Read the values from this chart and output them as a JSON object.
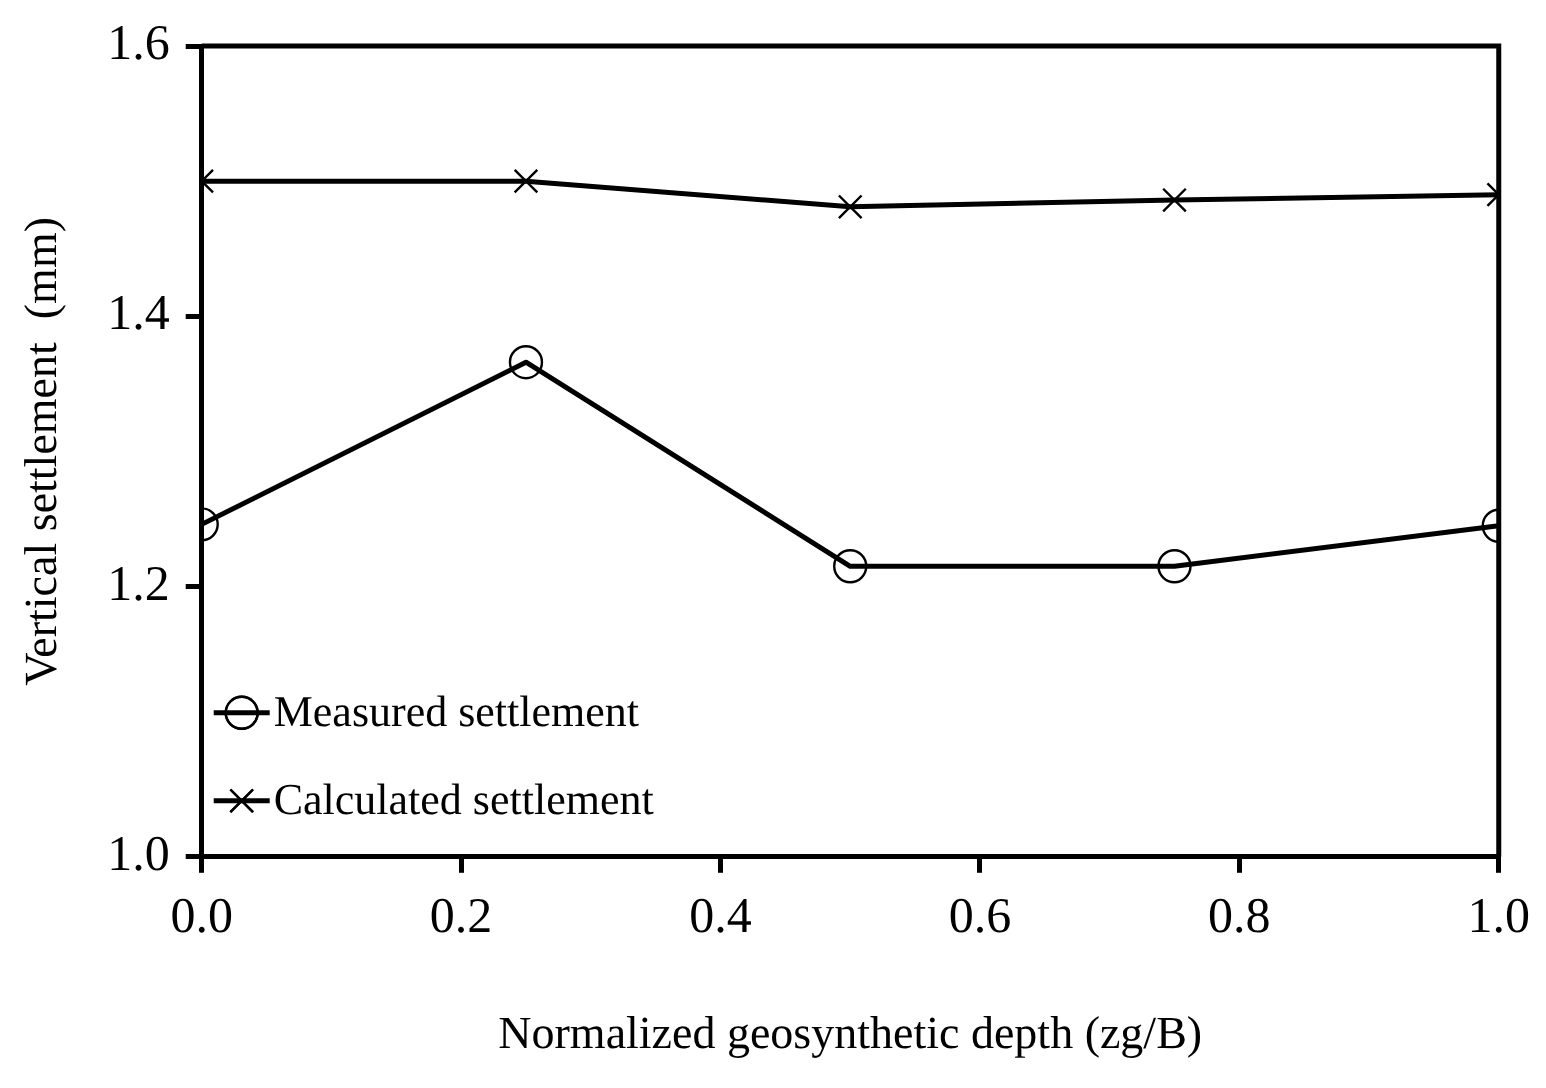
{
  "chart_data": {
    "type": "line",
    "xlabel": "Normalized geosynthetic depth (zg/B)",
    "ylabel": "Vertical settlement  (mm)",
    "x": [
      0,
      0.25,
      0.5,
      0.75,
      1
    ],
    "series": [
      {
        "name": "Measured settlement",
        "color": "#000000",
        "marker": "circle",
        "values": [
          1.246,
          1.366,
          1.215,
          1.215,
          1.245
        ]
      },
      {
        "name": "Calculated settlement",
        "color": "#000000",
        "marker": "cross",
        "values": [
          1.5,
          1.5,
          1.481,
          1.486,
          1.49
        ]
      }
    ],
    "xlim": [
      0,
      1
    ],
    "xticks": [
      {
        "value": 0,
        "label": "0.0"
      },
      0.2,
      0.4,
      0.6,
      0.8,
      {
        "value": 1,
        "label": "1.0"
      }
    ],
    "ylim": [
      1,
      1.6
    ],
    "yticks": [
      {
        "value": 1,
        "label": "1.0"
      },
      1.2,
      1.4,
      1.6
    ],
    "grid": false,
    "legend": "bottom left",
    "line_style": "solid"
  }
}
